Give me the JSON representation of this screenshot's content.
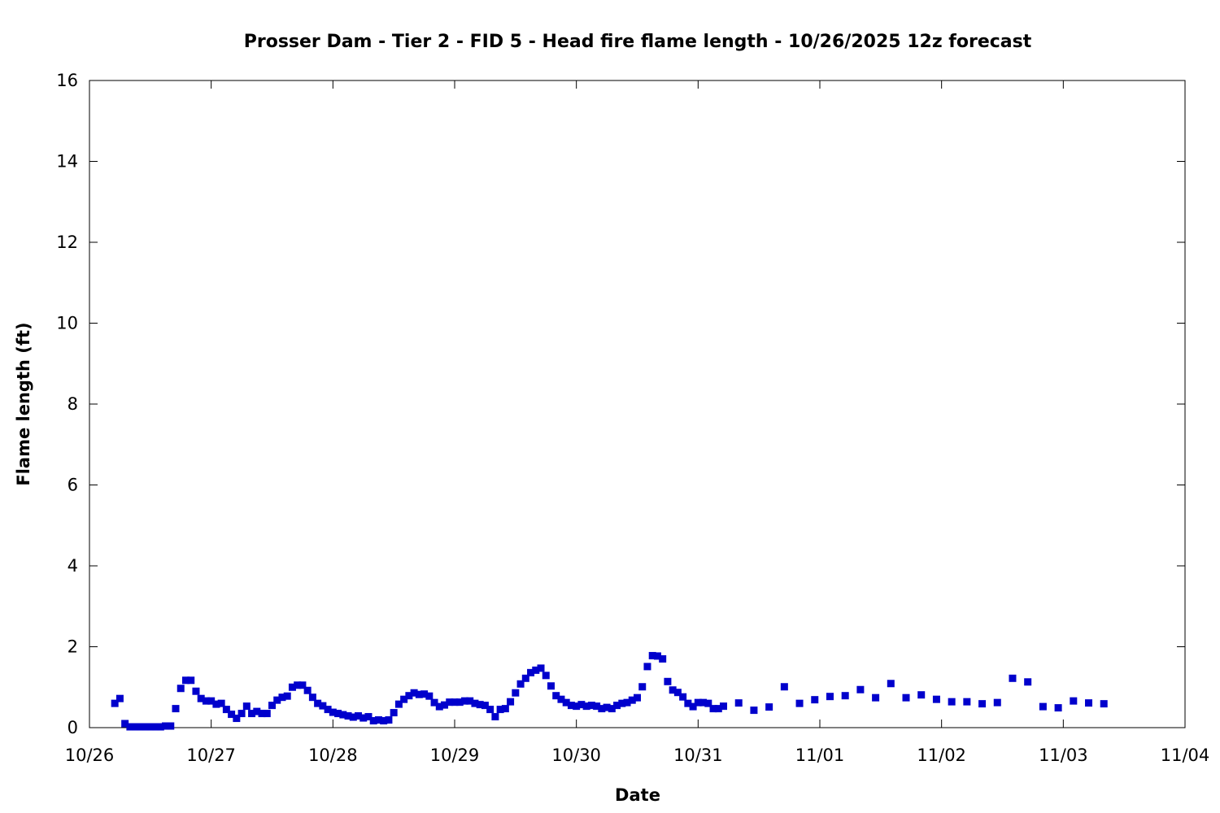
{
  "chart_data": {
    "type": "scatter",
    "title": "Prosser Dam - Tier 2 - FID 5 - Head fire flame length - 10/26/2025 12z forecast",
    "xlabel": "Date",
    "ylabel": "Flame length (ft)",
    "xlim": [
      "10/26",
      "11/04"
    ],
    "ylim": [
      0,
      16
    ],
    "x_ticks": [
      "10/26",
      "10/27",
      "10/28",
      "10/29",
      "10/30",
      "10/31",
      "11/01",
      "11/02",
      "11/03",
      "11/04"
    ],
    "y_ticks": [
      "0",
      "2",
      "4",
      "6",
      "8",
      "10",
      "12",
      "14",
      "16"
    ],
    "grid": false,
    "legend": false,
    "marker_color": "#0000cc",
    "series": [
      {
        "x": [
          "10/26 05:00",
          "10/26 06:00",
          "10/26 07:00",
          "10/26 08:00",
          "10/26 09:00",
          "10/26 10:00",
          "10/26 11:00",
          "10/26 12:00",
          "10/26 13:00",
          "10/26 14:00",
          "10/26 15:00",
          "10/26 16:00",
          "10/26 17:00",
          "10/26 18:00",
          "10/26 19:00",
          "10/26 20:00",
          "10/26 21:00",
          "10/26 22:00",
          "10/26 23:00",
          "10/27 00:00",
          "10/27 01:00",
          "10/27 02:00",
          "10/27 03:00",
          "10/27 04:00",
          "10/27 05:00",
          "10/27 06:00",
          "10/27 07:00",
          "10/27 08:00",
          "10/27 09:00",
          "10/27 10:00",
          "10/27 11:00",
          "10/27 12:00",
          "10/27 13:00",
          "10/27 14:00",
          "10/27 15:00",
          "10/27 16:00",
          "10/27 17:00",
          "10/27 18:00",
          "10/27 19:00",
          "10/27 20:00",
          "10/27 21:00",
          "10/27 22:00",
          "10/27 23:00",
          "10/28 00:00",
          "10/28 01:00",
          "10/28 02:00",
          "10/28 03:00",
          "10/28 04:00",
          "10/28 05:00",
          "10/28 06:00",
          "10/28 07:00",
          "10/28 08:00",
          "10/28 09:00",
          "10/28 10:00",
          "10/28 11:00",
          "10/28 12:00",
          "10/28 13:00",
          "10/28 14:00",
          "10/28 15:00",
          "10/28 16:00",
          "10/28 17:00",
          "10/28 18:00",
          "10/28 19:00",
          "10/28 20:00",
          "10/28 21:00",
          "10/28 22:00",
          "10/28 23:00",
          "10/29 00:00",
          "10/29 01:00",
          "10/29 02:00",
          "10/29 03:00",
          "10/29 04:00",
          "10/29 05:00",
          "10/29 06:00",
          "10/29 07:00",
          "10/29 08:00",
          "10/29 09:00",
          "10/29 10:00",
          "10/29 11:00",
          "10/29 12:00",
          "10/29 13:00",
          "10/29 14:00",
          "10/29 15:00",
          "10/29 16:00",
          "10/29 17:00",
          "10/29 18:00",
          "10/29 19:00",
          "10/29 20:00",
          "10/29 21:00",
          "10/29 22:00",
          "10/29 23:00",
          "10/30 00:00",
          "10/30 01:00",
          "10/30 02:00",
          "10/30 03:00",
          "10/30 04:00",
          "10/30 05:00",
          "10/30 06:00",
          "10/30 07:00",
          "10/30 08:00",
          "10/30 09:00",
          "10/30 10:00",
          "10/30 11:00",
          "10/30 12:00",
          "10/30 13:00",
          "10/30 14:00",
          "10/30 15:00",
          "10/30 16:00",
          "10/30 17:00",
          "10/30 18:00",
          "10/30 19:00",
          "10/30 20:00",
          "10/30 21:00",
          "10/30 22:00",
          "10/30 23:00",
          "10/31 00:00",
          "10/31 01:00",
          "10/31 02:00",
          "10/31 03:00",
          "10/31 04:00",
          "10/31 05:00",
          "10/31 08:00",
          "10/31 11:00",
          "10/31 14:00",
          "10/31 17:00",
          "10/31 20:00",
          "10/31 23:00",
          "11/01 02:00",
          "11/01 05:00",
          "11/01 08:00",
          "11/01 11:00",
          "11/01 14:00",
          "11/01 17:00",
          "11/01 20:00",
          "11/01 23:00",
          "11/02 02:00",
          "11/02 05:00",
          "11/02 08:00",
          "11/02 11:00",
          "11/02 14:00",
          "11/02 17:00",
          "11/02 20:00",
          "11/02 23:00",
          "11/03 02:00",
          "11/03 05:00"
        ],
        "y": [
          0.6,
          0.72,
          0.1,
          0.02,
          0.02,
          0.02,
          0.02,
          0.02,
          0.02,
          0.02,
          0.04,
          0.04,
          0.47,
          0.97,
          1.17,
          1.17,
          0.9,
          0.72,
          0.66,
          0.66,
          0.58,
          0.6,
          0.45,
          0.33,
          0.23,
          0.35,
          0.53,
          0.35,
          0.4,
          0.35,
          0.35,
          0.55,
          0.68,
          0.75,
          0.78,
          1.0,
          1.05,
          1.05,
          0.92,
          0.75,
          0.6,
          0.54,
          0.45,
          0.38,
          0.35,
          0.32,
          0.29,
          0.26,
          0.29,
          0.24,
          0.27,
          0.17,
          0.19,
          0.17,
          0.19,
          0.37,
          0.58,
          0.7,
          0.79,
          0.86,
          0.82,
          0.83,
          0.78,
          0.62,
          0.52,
          0.56,
          0.63,
          0.63,
          0.63,
          0.66,
          0.66,
          0.6,
          0.57,
          0.55,
          0.45,
          0.27,
          0.45,
          0.47,
          0.64,
          0.86,
          1.08,
          1.22,
          1.36,
          1.42,
          1.47,
          1.29,
          1.03,
          0.79,
          0.7,
          0.62,
          0.55,
          0.53,
          0.57,
          0.53,
          0.55,
          0.53,
          0.47,
          0.5,
          0.47,
          0.55,
          0.6,
          0.62,
          0.68,
          0.74,
          1.01,
          1.51,
          1.78,
          1.77,
          1.7,
          1.14,
          0.93,
          0.87,
          0.76,
          0.6,
          0.52,
          0.62,
          0.62,
          0.6,
          0.47,
          0.47,
          0.53,
          0.61,
          0.43,
          0.51,
          1.01,
          0.6,
          0.69,
          0.77,
          0.79,
          0.94,
          0.74,
          1.09,
          0.74,
          0.81,
          0.7,
          0.64,
          0.64,
          0.59,
          0.62,
          1.22,
          1.13,
          0.52,
          0.49,
          0.66,
          0.61
        ]
      },
      {
        "x": [
          "11/03 08:00"
        ],
        "y": [
          0.59
        ]
      }
    ]
  }
}
